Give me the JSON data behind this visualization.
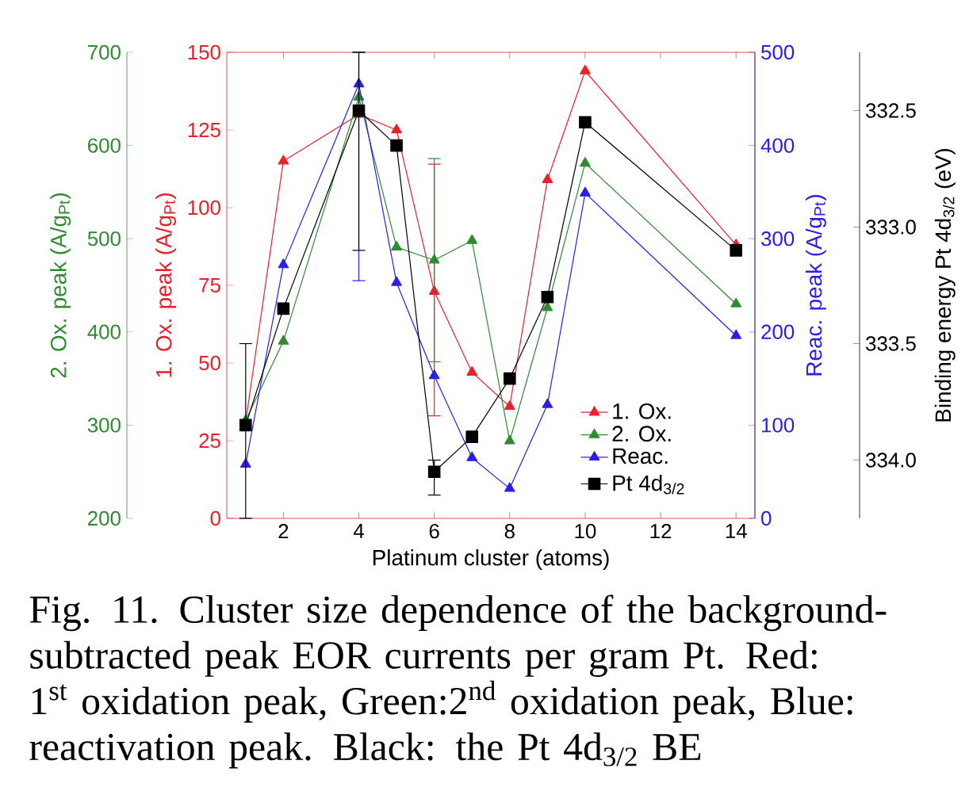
{
  "chart_data": [
    {
      "type": "line",
      "x": [
        1,
        2,
        4,
        5,
        6,
        7,
        8,
        9,
        10,
        14
      ],
      "xlim": [
        0.5,
        14.5
      ],
      "xticks": [
        2,
        4,
        6,
        8,
        10,
        12,
        14
      ],
      "xlabel": "Platinum cluster (atoms)",
      "ylabel": "1. Ox. peak (A/g$_{Pt}$)",
      "ylim": [
        0,
        150
      ],
      "yticks": [
        0,
        25,
        50,
        75,
        100,
        125,
        150
      ],
      "y2label": "Reac. peak (A/g$_{Pt}$)",
      "y2lim": [
        0,
        500
      ],
      "y2ticks": [
        0,
        100,
        200,
        300,
        400,
        500
      ],
      "y3label": "2. Ox. peak (A/g$_{Pt}$)",
      "y3lim": [
        200,
        700
      ],
      "y3ticks": [
        200,
        300,
        400,
        500,
        600,
        700
      ],
      "legend": "bottom right",
      "series": [
        {
          "name": "1. Ox.",
          "color": "#e8202a",
          "axis": "y",
          "marker": "triangle",
          "values": [
            31,
            115,
            130,
            125,
            73,
            47,
            36,
            109,
            144,
            88
          ],
          "errors": [
            null,
            null,
            null,
            null,
            [
              33,
              114
            ],
            null,
            null,
            null,
            null,
            null
          ]
        },
        {
          "name": "2. Ox.",
          "color": "#2e8b2e",
          "axis": "y3",
          "marker": "triangle",
          "values": [
            305,
            390,
            652,
            491,
            477,
            498,
            283,
            426,
            581,
            430
          ],
          "errors": [
            null,
            null,
            null,
            null,
            [
              368,
              586
            ],
            null,
            null,
            null,
            null,
            null
          ]
        },
        {
          "name": "Reac.",
          "color": "#2b1ee6",
          "axis": "y2",
          "marker": "triangle",
          "values": [
            58,
            272,
            466,
            253,
            153,
            65,
            32,
            122,
            349,
            196
          ],
          "errors": [
            null,
            null,
            [
              255,
              500
            ],
            null,
            null,
            null,
            null,
            null,
            null,
            null
          ]
        }
      ],
      "annotations": [
        "Fig. 11.  Cluster size dependence of the background-subtracted peak EOR currents per gram Pt.  Red: 1$^{st}$ oxidation peak, Green:2$^{nd}$ oxidation peak, Blue: reactivation peak.  Black: the Pt 4d$_{3/2}$ BE"
      ]
    },
    {
      "type": "line",
      "x": [
        1,
        2,
        4,
        5,
        6,
        7,
        8,
        9,
        10,
        14
      ],
      "xlim": [
        0.5,
        14.5
      ],
      "ylabel": "Binding energy Pt 4d$_{3/2}$ (eV)",
      "ylim": [
        334.25,
        332.25
      ],
      "yticks": [
        332.5,
        {
          "value": 333,
          "label": "333.0"
        },
        333.5,
        {
          "value": 334,
          "label": "334.0"
        }
      ],
      "tick_labels": "y",
      "legend": "bottom right",
      "series": [
        {
          "name": "Pt 4d$_{3/2}$",
          "color": "#000000",
          "marker": "square",
          "values": [
            333.85,
            333.35,
            332.5,
            332.65,
            334.05,
            333.9,
            333.65,
            333.3,
            332.55,
            333.1
          ],
          "errors": [
            [
              333.5,
              334.25
            ],
            null,
            [
              332.25,
              333.1
            ],
            null,
            [
              334,
              334.15
            ],
            null,
            null,
            null,
            null,
            null
          ]
        }
      ]
    }
  ]
}
